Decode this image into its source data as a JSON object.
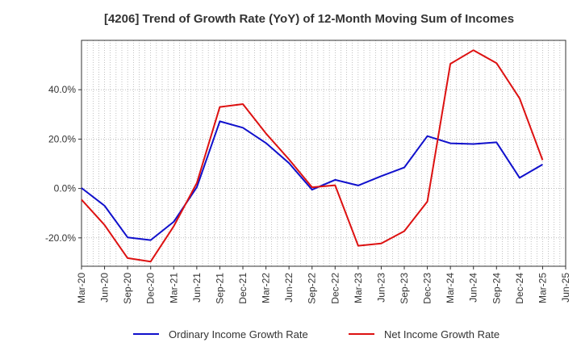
{
  "chart_data": {
    "type": "line",
    "title": "[4206]  Trend of Growth Rate (YoY) of 12-Month Moving Sum of Incomes",
    "xlabel": "",
    "ylabel": "",
    "x": [
      "Mar-20",
      "Jun-20",
      "Sep-20",
      "Dec-20",
      "Mar-21",
      "Jun-21",
      "Sep-21",
      "Dec-21",
      "Mar-22",
      "Jun-22",
      "Sep-22",
      "Dec-22",
      "Mar-23",
      "Jun-23",
      "Sep-23",
      "Dec-23",
      "Mar-24",
      "Jun-24",
      "Sep-24",
      "Dec-24",
      "Mar-25",
      "Jun-25"
    ],
    "ylim": [
      -31.5,
      60
    ],
    "yticks": [
      -20,
      0,
      20,
      40
    ],
    "ytick_labels": [
      "-20.0%",
      "0.0%",
      "20.0%",
      "40.0%"
    ],
    "grid": true,
    "legend_position": "bottom",
    "series": [
      {
        "name": "Ordinary Income Growth Rate",
        "color": "#1010cc",
        "values": [
          0.2,
          -7.0,
          -19.8,
          -20.9,
          -13.5,
          0.5,
          27.2,
          24.6,
          18.4,
          10.3,
          -0.5,
          3.5,
          1.2,
          5.0,
          8.5,
          21.2,
          18.3,
          18.0,
          18.7,
          4.3,
          9.7,
          null
        ]
      },
      {
        "name": "Net Income Growth Rate",
        "color": "#dd1111",
        "values": [
          -4.5,
          -14.8,
          -28.2,
          -29.6,
          -15.3,
          2.2,
          33.0,
          34.2,
          22.3,
          11.8,
          0.5,
          1.3,
          -23.2,
          -22.3,
          -17.3,
          -5.3,
          50.5,
          56.0,
          50.8,
          36.5,
          11.5,
          null
        ]
      }
    ]
  }
}
